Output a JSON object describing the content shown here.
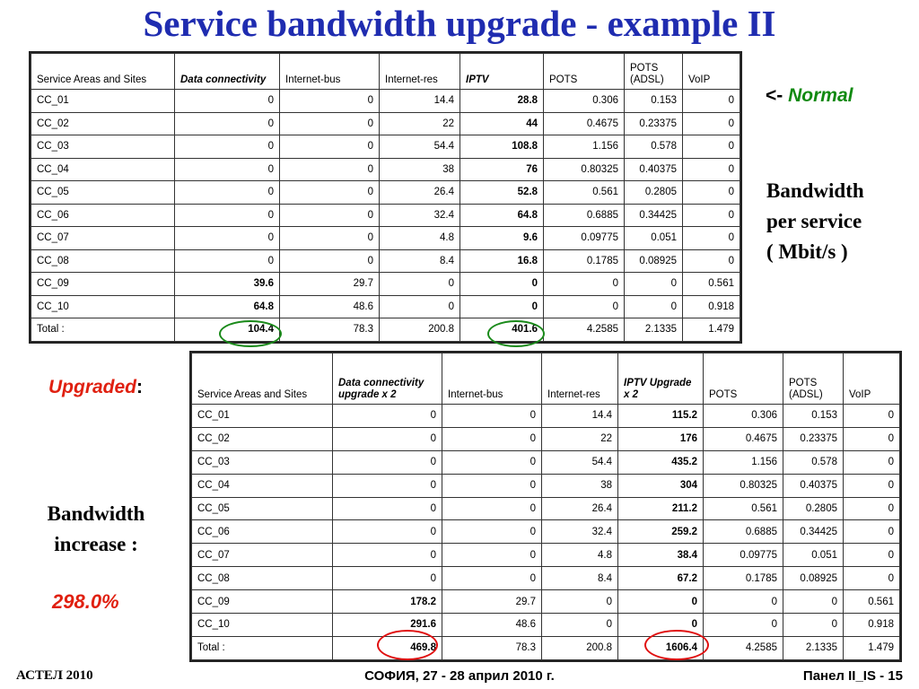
{
  "title": "Service bandwidth upgrade - example II",
  "normal_table": {
    "headers": [
      "Service Areas and Sites",
      "Data connectivity",
      "Internet-bus",
      "Internet-res",
      "IPTV",
      "POTS",
      "POTS (ADSL)",
      "VoIP"
    ],
    "rows": [
      [
        "CC_01",
        "0",
        "0",
        "14.4",
        "28.8",
        "0.306",
        "0.153",
        "0"
      ],
      [
        "CC_02",
        "0",
        "0",
        "22",
        "44",
        "0.4675",
        "0.23375",
        "0"
      ],
      [
        "CC_03",
        "0",
        "0",
        "54.4",
        "108.8",
        "1.156",
        "0.578",
        "0"
      ],
      [
        "CC_04",
        "0",
        "0",
        "38",
        "76",
        "0.80325",
        "0.40375",
        "0"
      ],
      [
        "CC_05",
        "0",
        "0",
        "26.4",
        "52.8",
        "0.561",
        "0.2805",
        "0"
      ],
      [
        "CC_06",
        "0",
        "0",
        "32.4",
        "64.8",
        "0.6885",
        "0.34425",
        "0"
      ],
      [
        "CC_07",
        "0",
        "0",
        "4.8",
        "9.6",
        "0.09775",
        "0.051",
        "0"
      ],
      [
        "CC_08",
        "0",
        "0",
        "8.4",
        "16.8",
        "0.1785",
        "0.08925",
        "0"
      ],
      [
        "CC_09",
        "39.6",
        "29.7",
        "0",
        "0",
        "0",
        "0",
        "0.561"
      ],
      [
        "CC_10",
        "64.8",
        "48.6",
        "0",
        "0",
        "0",
        "0",
        "0.918"
      ],
      [
        "Total :",
        "104.4",
        "78.3",
        "200.8",
        "401.6",
        "4.2585",
        "2.1335",
        "1.479"
      ]
    ]
  },
  "upgraded_table": {
    "headers": [
      "Service Areas and Sites",
      "Data connectivity upgrade x 2",
      "Internet-bus",
      "Internet-res",
      "IPTV Upgrade x 2",
      "POTS",
      "POTS (ADSL)",
      "VoIP"
    ],
    "rows": [
      [
        "CC_01",
        "0",
        "0",
        "14.4",
        "115.2",
        "0.306",
        "0.153",
        "0"
      ],
      [
        "CC_02",
        "0",
        "0",
        "22",
        "176",
        "0.4675",
        "0.23375",
        "0"
      ],
      [
        "CC_03",
        "0",
        "0",
        "54.4",
        "435.2",
        "1.156",
        "0.578",
        "0"
      ],
      [
        "CC_04",
        "0",
        "0",
        "38",
        "304",
        "0.80325",
        "0.40375",
        "0"
      ],
      [
        "CC_05",
        "0",
        "0",
        "26.4",
        "211.2",
        "0.561",
        "0.2805",
        "0"
      ],
      [
        "CC_06",
        "0",
        "0",
        "32.4",
        "259.2",
        "0.6885",
        "0.34425",
        "0"
      ],
      [
        "CC_07",
        "0",
        "0",
        "4.8",
        "38.4",
        "0.09775",
        "0.051",
        "0"
      ],
      [
        "CC_08",
        "0",
        "0",
        "8.4",
        "67.2",
        "0.1785",
        "0.08925",
        "0"
      ],
      [
        "CC_09",
        "178.2",
        "29.7",
        "0",
        "0",
        "0",
        "0",
        "0.561"
      ],
      [
        "CC_10",
        "291.6",
        "48.6",
        "0",
        "0",
        "0",
        "0",
        "0.918"
      ],
      [
        "Total :",
        "469.8",
        "78.3",
        "200.8",
        "1606.4",
        "4.2585",
        "2.1335",
        "1.479"
      ]
    ]
  },
  "normal_note": {
    "arrow": "<-",
    "label": "Normal"
  },
  "bandwidth_note": [
    "Bandwidth",
    "per service",
    "( Mbit/s )"
  ],
  "upgraded_label": {
    "text": "Upgraded",
    "colon": ":"
  },
  "increase_note": [
    "Bandwidth",
    "increase :"
  ],
  "increase_value": "298.0%",
  "footer": {
    "left": "АСТЕЛ 2010",
    "center": "СОФИЯ, 27 - 28 април 2010 г.",
    "right": "Панел II_IS - 15"
  },
  "colors": {
    "title": "#1f2cb0",
    "normal": "#118a11",
    "upgraded": "#e02010",
    "ring_normal": "#1a8a1a",
    "ring_upgraded": "#e01010"
  }
}
